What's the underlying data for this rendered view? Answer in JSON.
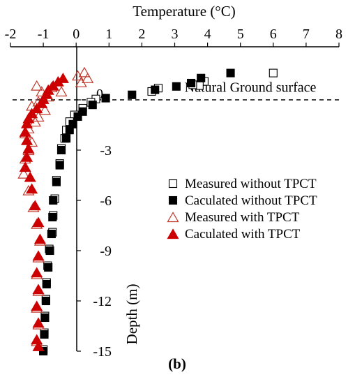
{
  "chart_data": {
    "type": "scatter",
    "title": "",
    "panel_label": "(b)",
    "xlabel": "Temperature (°C)",
    "ylabel": "Depth (m)",
    "x_axis_position": "top",
    "xlim": [
      -2,
      8
    ],
    "ylim": [
      -15,
      1.8
    ],
    "x_ticks": [
      -2,
      -1,
      0,
      1,
      2,
      3,
      4,
      5,
      6,
      7,
      8
    ],
    "y_ticks": [
      0,
      -3,
      -6,
      -9,
      -12,
      -15
    ],
    "grid": false,
    "legend_position": "right",
    "ground_surface_depth": 0,
    "annotations": [
      {
        "text": "Natural Ground surface",
        "x": 3.3,
        "y": 0.4
      }
    ],
    "series": [
      {
        "name": "Measured without TPCT",
        "marker": "square-open",
        "color": "#000000",
        "points": [
          [
            6.0,
            1.6
          ],
          [
            3.9,
            1.1
          ],
          [
            3.75,
            0.85
          ],
          [
            3.55,
            0.9
          ],
          [
            2.5,
            0.7
          ],
          [
            2.3,
            0.5
          ],
          [
            0.6,
            0.05
          ],
          [
            0.45,
            -0.15
          ],
          [
            0.2,
            -0.5
          ],
          [
            -0.05,
            -0.9
          ],
          [
            -0.2,
            -1.3
          ],
          [
            -0.3,
            -1.8
          ],
          [
            -0.35,
            -2.3
          ],
          [
            -0.45,
            -2.9
          ],
          [
            -0.5,
            -3.8
          ],
          [
            -0.6,
            -4.8
          ],
          [
            -0.65,
            -5.9
          ],
          [
            -0.7,
            -6.9
          ],
          [
            -0.72,
            -7.9
          ],
          [
            -0.82,
            -8.9
          ],
          [
            -0.87,
            -9.9
          ],
          [
            -0.9,
            -10.9
          ],
          [
            -0.92,
            -11.9
          ],
          [
            -0.95,
            -12.9
          ],
          [
            -0.97,
            -13.9
          ],
          [
            -1.0,
            -14.9
          ]
        ]
      },
      {
        "name": "Caculated without TPCT",
        "marker": "square-filled",
        "color": "#000000",
        "points": [
          [
            4.7,
            1.6
          ],
          [
            3.8,
            1.3
          ],
          [
            3.5,
            1.0
          ],
          [
            3.05,
            0.8
          ],
          [
            2.4,
            0.6
          ],
          [
            1.7,
            0.3
          ],
          [
            0.9,
            0.1
          ],
          [
            0.5,
            -0.3
          ],
          [
            0.2,
            -0.7
          ],
          [
            0.05,
            -1.0
          ],
          [
            -0.1,
            -1.45
          ],
          [
            -0.2,
            -1.8
          ],
          [
            -0.3,
            -2.3
          ],
          [
            -0.45,
            -3.0
          ],
          [
            -0.5,
            -3.9
          ],
          [
            -0.6,
            -4.9
          ],
          [
            -0.7,
            -6.0
          ],
          [
            -0.72,
            -7.0
          ],
          [
            -0.75,
            -8.0
          ],
          [
            -0.8,
            -9.0
          ],
          [
            -0.85,
            -10.0
          ],
          [
            -0.9,
            -11.0
          ],
          [
            -0.92,
            -12.0
          ],
          [
            -0.95,
            -13.0
          ],
          [
            -0.97,
            -14.0
          ],
          [
            -1.0,
            -15.0
          ]
        ]
      },
      {
        "name": "Measured with TPCT",
        "marker": "triangle-open",
        "color": "#c0392b",
        "points": [
          [
            0.25,
            1.65
          ],
          [
            0.35,
            1.3
          ],
          [
            0.05,
            1.45
          ],
          [
            0.15,
            1.05
          ],
          [
            -1.2,
            0.85
          ],
          [
            -0.75,
            0.75
          ],
          [
            -0.45,
            0.5
          ],
          [
            -1.05,
            0.5
          ],
          [
            -0.85,
            0.2
          ],
          [
            -1.15,
            -0.1
          ],
          [
            -1.35,
            -0.35
          ],
          [
            -0.95,
            -0.6
          ],
          [
            -1.15,
            -1.0
          ],
          [
            -1.25,
            -1.3
          ],
          [
            -1.45,
            -1.7
          ],
          [
            -1.55,
            -2.0
          ],
          [
            -1.35,
            -2.5
          ],
          [
            -1.45,
            -3.0
          ],
          [
            -1.55,
            -3.5
          ],
          [
            -1.6,
            -4.4
          ],
          [
            -1.45,
            -5.4
          ],
          [
            -1.3,
            -6.4
          ],
          [
            -1.2,
            -7.4
          ],
          [
            -1.1,
            -8.4
          ],
          [
            -1.15,
            -9.4
          ],
          [
            -1.2,
            -10.4
          ],
          [
            -1.15,
            -11.4
          ],
          [
            -1.2,
            -12.4
          ],
          [
            -1.15,
            -13.4
          ],
          [
            -1.2,
            -14.4
          ]
        ]
      },
      {
        "name": "Caculated with TPCT",
        "marker": "triangle-filled",
        "color": "#cc0000",
        "points": [
          [
            -0.4,
            1.3
          ],
          [
            -0.55,
            1.1
          ],
          [
            -0.7,
            0.85
          ],
          [
            -0.85,
            0.6
          ],
          [
            -0.9,
            0.35
          ],
          [
            -1.0,
            0.05
          ],
          [
            -1.05,
            -0.2
          ],
          [
            -1.2,
            -0.5
          ],
          [
            -1.35,
            -0.8
          ],
          [
            -1.45,
            -1.1
          ],
          [
            -1.5,
            -1.4
          ],
          [
            -1.55,
            -1.9
          ],
          [
            -1.5,
            -2.4
          ],
          [
            -1.45,
            -2.9
          ],
          [
            -1.5,
            -3.4
          ],
          [
            -1.55,
            -4.0
          ],
          [
            -1.4,
            -4.6
          ],
          [
            -1.35,
            -5.3
          ],
          [
            -1.25,
            -6.3
          ],
          [
            -1.15,
            -7.3
          ],
          [
            -1.1,
            -8.3
          ],
          [
            -1.15,
            -9.3
          ],
          [
            -1.2,
            -10.3
          ],
          [
            -1.15,
            -11.3
          ],
          [
            -1.2,
            -12.3
          ],
          [
            -1.15,
            -13.3
          ],
          [
            -1.2,
            -14.3
          ],
          [
            -1.15,
            -14.7
          ]
        ]
      }
    ]
  }
}
